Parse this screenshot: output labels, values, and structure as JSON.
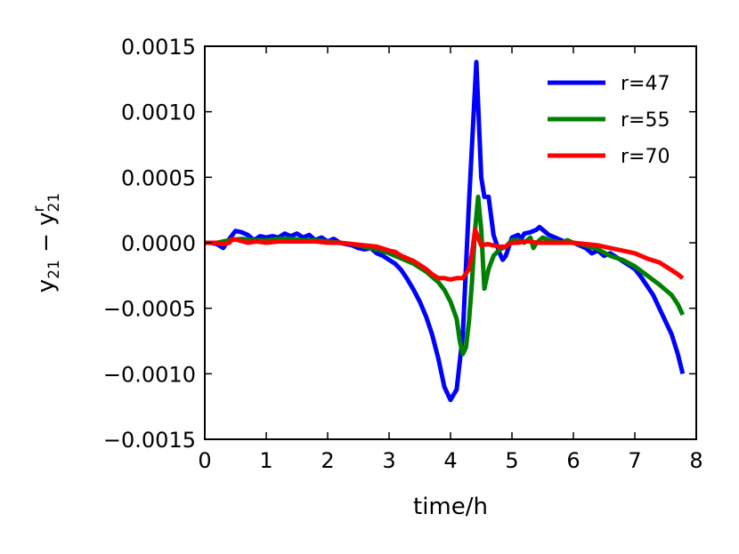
{
  "chart_data": {
    "type": "line",
    "xlabel": "time/h",
    "ylabel_parts": [
      "y",
      "21",
      " − ",
      "y",
      "r",
      "21"
    ],
    "xlim": [
      0,
      8
    ],
    "ylim": [
      -0.0015,
      0.0015
    ],
    "x_ticks": [
      0,
      1,
      2,
      3,
      4,
      5,
      6,
      7,
      8
    ],
    "x_tick_labels": [
      "0",
      "1",
      "2",
      "3",
      "4",
      "5",
      "6",
      "7",
      "8"
    ],
    "y_ticks": [
      0.0015,
      0.001,
      0.0005,
      0.0,
      -0.0005,
      -0.001,
      -0.0015
    ],
    "y_tick_labels": [
      "0.0015",
      "0.0010",
      "0.0005",
      "0.0000",
      "−0.0005",
      "−0.0010",
      "−0.0015"
    ],
    "grid": false,
    "legend_position": "top-right",
    "series": [
      {
        "name": "r=47",
        "color": "#0000ff",
        "points": [
          [
            0,
            0.0
          ],
          [
            0.1,
            0.0
          ],
          [
            0.2,
            -1e-05
          ],
          [
            0.3,
            -4e-05
          ],
          [
            0.4,
            3e-05
          ],
          [
            0.5,
            9e-05
          ],
          [
            0.6,
            8e-05
          ],
          [
            0.7,
            6e-05
          ],
          [
            0.8,
            2e-05
          ],
          [
            0.9,
            5e-05
          ],
          [
            1.0,
            4e-05
          ],
          [
            1.1,
            5e-05
          ],
          [
            1.2,
            4e-05
          ],
          [
            1.3,
            7e-05
          ],
          [
            1.4,
            5e-05
          ],
          [
            1.5,
            7e-05
          ],
          [
            1.6,
            4e-05
          ],
          [
            1.7,
            6e-05
          ],
          [
            1.8,
            2e-05
          ],
          [
            1.9,
            4e-05
          ],
          [
            2.0,
            1e-05
          ],
          [
            2.1,
            3e-05
          ],
          [
            2.2,
            0.0
          ],
          [
            2.3,
            -1e-05
          ],
          [
            2.4,
            -2e-05
          ],
          [
            2.5,
            -4e-05
          ],
          [
            2.6,
            -5e-05
          ],
          [
            2.7,
            -4e-05
          ],
          [
            2.8,
            -8e-05
          ],
          [
            2.9,
            -0.0001
          ],
          [
            3.0,
            -0.00013
          ],
          [
            3.1,
            -0.00016
          ],
          [
            3.2,
            -0.00021
          ],
          [
            3.3,
            -0.00028
          ],
          [
            3.4,
            -0.00036
          ],
          [
            3.5,
            -0.00045
          ],
          [
            3.6,
            -0.00056
          ],
          [
            3.7,
            -0.0007
          ],
          [
            3.8,
            -0.00088
          ],
          [
            3.9,
            -0.0011
          ],
          [
            4.0,
            -0.0012
          ],
          [
            4.1,
            -0.00112
          ],
          [
            4.2,
            -0.0007
          ],
          [
            4.3,
            0.0003
          ],
          [
            4.42,
            0.00138
          ],
          [
            4.5,
            0.0005
          ],
          [
            4.55,
            0.00035
          ],
          [
            4.62,
            0.00035
          ],
          [
            4.7,
            6e-05
          ],
          [
            4.8,
            -8e-05
          ],
          [
            4.85,
            -0.00013
          ],
          [
            4.9,
            -0.0001
          ],
          [
            5.0,
            4e-05
          ],
          [
            5.1,
            6e-05
          ],
          [
            5.15,
            3e-05
          ],
          [
            5.2,
            7e-05
          ],
          [
            5.3,
            8e-05
          ],
          [
            5.4,
            0.0001
          ],
          [
            5.45,
            0.00012
          ],
          [
            5.5,
            0.0001
          ],
          [
            5.6,
            6e-05
          ],
          [
            5.7,
            4e-05
          ],
          [
            5.8,
            2e-05
          ],
          [
            5.9,
            0.0
          ],
          [
            6.0,
            0.0
          ],
          [
            6.1,
            -2e-05
          ],
          [
            6.2,
            -4e-05
          ],
          [
            6.3,
            -8e-05
          ],
          [
            6.4,
            -6e-05
          ],
          [
            6.5,
            -0.0001
          ],
          [
            6.6,
            -8e-05
          ],
          [
            6.7,
            -0.00011
          ],
          [
            6.8,
            -0.00014
          ],
          [
            6.9,
            -0.00017
          ],
          [
            7.0,
            -0.0002
          ],
          [
            7.1,
            -0.00026
          ],
          [
            7.2,
            -0.00033
          ],
          [
            7.3,
            -0.0004
          ],
          [
            7.4,
            -0.0005
          ],
          [
            7.5,
            -0.0006
          ],
          [
            7.6,
            -0.0007
          ],
          [
            7.7,
            -0.00085
          ],
          [
            7.78,
            -0.001
          ]
        ]
      },
      {
        "name": "r=55",
        "color": "#008000",
        "points": [
          [
            0,
            0.0
          ],
          [
            0.2,
            0.0
          ],
          [
            0.4,
            2e-05
          ],
          [
            0.6,
            3e-05
          ],
          [
            0.8,
            2e-05
          ],
          [
            1.0,
            2e-05
          ],
          [
            1.2,
            3e-05
          ],
          [
            1.4,
            3e-05
          ],
          [
            1.6,
            2e-05
          ],
          [
            1.8,
            2e-05
          ],
          [
            2.0,
            1e-05
          ],
          [
            2.2,
            0.0
          ],
          [
            2.4,
            -1e-05
          ],
          [
            2.6,
            -3e-05
          ],
          [
            2.8,
            -5e-05
          ],
          [
            3.0,
            -8e-05
          ],
          [
            3.2,
            -0.00012
          ],
          [
            3.4,
            -0.00016
          ],
          [
            3.6,
            -0.00022
          ],
          [
            3.8,
            -0.0003
          ],
          [
            3.9,
            -0.00036
          ],
          [
            4.0,
            -0.00045
          ],
          [
            4.1,
            -0.00058
          ],
          [
            4.15,
            -0.00075
          ],
          [
            4.2,
            -0.00085
          ],
          [
            4.25,
            -0.0008
          ],
          [
            4.3,
            -0.0006
          ],
          [
            4.35,
            -0.0003
          ],
          [
            4.4,
            0.0001
          ],
          [
            4.45,
            0.00035
          ],
          [
            4.5,
            0.0001
          ],
          [
            4.55,
            -0.00035
          ],
          [
            4.62,
            -0.0002
          ],
          [
            4.7,
            -0.0001
          ],
          [
            4.8,
            -5e-05
          ],
          [
            4.9,
            -3e-05
          ],
          [
            5.0,
            2e-05
          ],
          [
            5.1,
            2e-05
          ],
          [
            5.2,
            0.0
          ],
          [
            5.3,
            4e-05
          ],
          [
            5.35,
            -4e-05
          ],
          [
            5.4,
            0.0
          ],
          [
            5.5,
            4e-05
          ],
          [
            5.6,
            2e-05
          ],
          [
            5.7,
            1e-05
          ],
          [
            5.8,
            0.0
          ],
          [
            5.9,
            2e-05
          ],
          [
            6.0,
            0.0
          ],
          [
            6.2,
            -2e-05
          ],
          [
            6.4,
            -5e-05
          ],
          [
            6.6,
            -0.0001
          ],
          [
            6.8,
            -0.00013
          ],
          [
            7.0,
            -0.00018
          ],
          [
            7.2,
            -0.00025
          ],
          [
            7.4,
            -0.00032
          ],
          [
            7.6,
            -0.0004
          ],
          [
            7.7,
            -0.00047
          ],
          [
            7.78,
            -0.00055
          ]
        ]
      },
      {
        "name": "r=70",
        "color": "#ff0000",
        "points": [
          [
            0,
            0.0
          ],
          [
            0.2,
            0.0
          ],
          [
            0.3,
            -1e-05
          ],
          [
            0.4,
            0.0
          ],
          [
            0.45,
            3e-05
          ],
          [
            0.55,
            2e-05
          ],
          [
            0.7,
            0.0
          ],
          [
            0.85,
            1e-05
          ],
          [
            1.0,
            0.0
          ],
          [
            1.2,
            1e-05
          ],
          [
            1.4,
            1e-05
          ],
          [
            1.6,
            1e-05
          ],
          [
            1.8,
            1e-05
          ],
          [
            2.0,
            0.0
          ],
          [
            2.2,
            0.0
          ],
          [
            2.4,
            -1e-05
          ],
          [
            2.6,
            -2e-05
          ],
          [
            2.8,
            -3e-05
          ],
          [
            3.0,
            -6e-05
          ],
          [
            3.1,
            -7e-05
          ],
          [
            3.2,
            -0.0001
          ],
          [
            3.4,
            -0.00014
          ],
          [
            3.5,
            -0.00017
          ],
          [
            3.6,
            -0.0002
          ],
          [
            3.7,
            -0.00024
          ],
          [
            3.8,
            -0.00027
          ],
          [
            3.9,
            -0.00027
          ],
          [
            4.0,
            -0.00028
          ],
          [
            4.1,
            -0.00027
          ],
          [
            4.2,
            -0.00027
          ],
          [
            4.3,
            -0.0002
          ],
          [
            4.35,
            -8e-05
          ],
          [
            4.4,
            0.0001
          ],
          [
            4.45,
            4e-05
          ],
          [
            4.5,
            -2e-05
          ],
          [
            4.6,
            -1e-05
          ],
          [
            4.7,
            -2e-05
          ],
          [
            4.8,
            -3e-05
          ],
          [
            4.9,
            -3e-05
          ],
          [
            5.0,
            0.0
          ],
          [
            5.1,
            0.0
          ],
          [
            5.2,
            1e-05
          ],
          [
            5.3,
            1e-05
          ],
          [
            5.4,
            0.0
          ],
          [
            5.5,
            0.0
          ],
          [
            5.6,
            0.0
          ],
          [
            5.8,
            0.0
          ],
          [
            6.0,
            0.0
          ],
          [
            6.2,
            -1e-05
          ],
          [
            6.4,
            -2e-05
          ],
          [
            6.6,
            -4e-05
          ],
          [
            6.8,
            -6e-05
          ],
          [
            7.0,
            -8e-05
          ],
          [
            7.2,
            -0.00012
          ],
          [
            7.4,
            -0.00015
          ],
          [
            7.6,
            -0.00021
          ],
          [
            7.7,
            -0.00024
          ],
          [
            7.78,
            -0.00027
          ]
        ]
      }
    ]
  }
}
